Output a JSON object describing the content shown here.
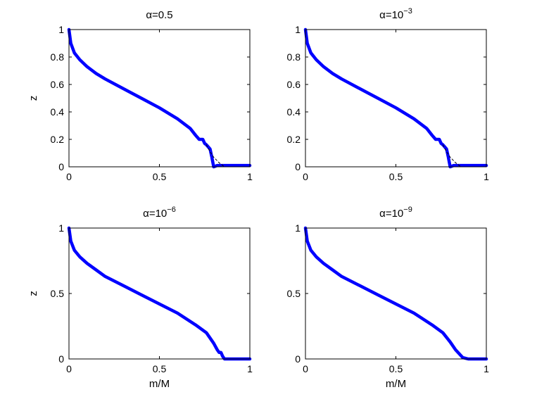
{
  "chart_data": [
    {
      "type": "line",
      "title_base": "α=",
      "title_value": "0.5",
      "title_exp": "",
      "xlabel": "",
      "ylabel": "z",
      "xlim": [
        0,
        1
      ],
      "ylim": [
        0,
        1
      ],
      "xticks": [
        0,
        0.5,
        1
      ],
      "xtick_labels": [
        "0",
        "0.5",
        "1"
      ],
      "yticks": [
        0,
        0.2,
        0.4,
        0.6,
        0.8,
        1
      ],
      "ytick_labels": [
        "0",
        "0.2",
        "0.4",
        "0.6",
        "0.8",
        "1"
      ],
      "series": [
        {
          "color": "#0000ff",
          "style": "solid",
          "x": [
            0,
            0.01,
            0.03,
            0.06,
            0.1,
            0.15,
            0.2,
            0.3,
            0.4,
            0.5,
            0.6,
            0.67,
            0.7,
            0.72,
            0.74,
            0.75,
            0.76,
            0.78,
            0.79,
            0.8,
            0.82,
            0.84,
            0.86,
            0.9,
            0.95,
            1.0
          ],
          "y": [
            1.0,
            0.9,
            0.83,
            0.78,
            0.73,
            0.68,
            0.64,
            0.57,
            0.5,
            0.43,
            0.35,
            0.28,
            0.23,
            0.2,
            0.2,
            0.17,
            0.16,
            0.13,
            0.07,
            0.0,
            0.01,
            0.01,
            0.01,
            0.01,
            0.01,
            0.01
          ]
        },
        {
          "color": "#000000",
          "style": "dashed",
          "x": [
            0.76,
            0.78,
            0.8,
            0.83,
            0.86
          ],
          "y": [
            0.16,
            0.11,
            0.07,
            0.03,
            0.0
          ]
        }
      ]
    },
    {
      "type": "line",
      "title_base": "α=",
      "title_value": "10",
      "title_exp": "−3",
      "xlabel": "",
      "ylabel": "",
      "xlim": [
        0,
        1
      ],
      "ylim": [
        0,
        1
      ],
      "xticks": [
        0,
        0.5,
        1
      ],
      "xtick_labels": [
        "0",
        "0.5",
        "1"
      ],
      "yticks": [
        0,
        0.2,
        0.4,
        0.6,
        0.8,
        1
      ],
      "ytick_labels": [
        "0",
        "0.2",
        "0.4",
        "0.6",
        "0.8",
        "1"
      ],
      "series": [
        {
          "color": "#0000ff",
          "style": "solid",
          "x": [
            0,
            0.01,
            0.03,
            0.06,
            0.1,
            0.15,
            0.2,
            0.3,
            0.4,
            0.5,
            0.6,
            0.67,
            0.7,
            0.72,
            0.74,
            0.75,
            0.76,
            0.78,
            0.79,
            0.8,
            0.82,
            0.84,
            0.86,
            0.9,
            0.95,
            1.0
          ],
          "y": [
            1.0,
            0.9,
            0.83,
            0.78,
            0.73,
            0.68,
            0.64,
            0.57,
            0.5,
            0.43,
            0.35,
            0.28,
            0.23,
            0.2,
            0.2,
            0.17,
            0.16,
            0.13,
            0.07,
            0.0,
            0.01,
            0.01,
            0.01,
            0.01,
            0.01,
            0.01
          ]
        },
        {
          "color": "#000000",
          "style": "dashed",
          "x": [
            0.76,
            0.78,
            0.8,
            0.83,
            0.86
          ],
          "y": [
            0.16,
            0.11,
            0.07,
            0.03,
            0.0
          ]
        }
      ]
    },
    {
      "type": "line",
      "title_base": "α=",
      "title_value": "10",
      "title_exp": "−6",
      "xlabel": "m/M",
      "ylabel": "z",
      "xlim": [
        0,
        1
      ],
      "ylim": [
        0,
        1
      ],
      "xticks": [
        0,
        0.5,
        1
      ],
      "xtick_labels": [
        "0",
        "0.5",
        "1"
      ],
      "yticks": [
        0,
        0.5,
        1
      ],
      "ytick_labels": [
        "0",
        "0.5",
        "1"
      ],
      "series": [
        {
          "color": "#0000ff",
          "style": "solid",
          "x": [
            0,
            0.01,
            0.03,
            0.06,
            0.1,
            0.15,
            0.2,
            0.3,
            0.4,
            0.5,
            0.6,
            0.7,
            0.76,
            0.8,
            0.82,
            0.83,
            0.84,
            0.85,
            0.86,
            0.9,
            0.95,
            1.0
          ],
          "y": [
            1.0,
            0.9,
            0.83,
            0.78,
            0.73,
            0.68,
            0.63,
            0.56,
            0.49,
            0.42,
            0.35,
            0.26,
            0.2,
            0.12,
            0.07,
            0.05,
            0.05,
            0.02,
            0.0,
            0.0,
            0.0,
            0.0
          ]
        }
      ]
    },
    {
      "type": "line",
      "title_base": "α=",
      "title_value": "10",
      "title_exp": "−9",
      "xlabel": "m/M",
      "ylabel": "",
      "xlim": [
        0,
        1
      ],
      "ylim": [
        0,
        1
      ],
      "xticks": [
        0,
        0.5,
        1
      ],
      "xtick_labels": [
        "0",
        "0.5",
        "1"
      ],
      "yticks": [
        0,
        0.5,
        1
      ],
      "ytick_labels": [
        "0",
        "0.5",
        "1"
      ],
      "series": [
        {
          "color": "#0000ff",
          "style": "solid",
          "x": [
            0,
            0.01,
            0.03,
            0.06,
            0.1,
            0.15,
            0.2,
            0.3,
            0.4,
            0.5,
            0.6,
            0.7,
            0.76,
            0.8,
            0.83,
            0.85,
            0.87,
            0.9,
            0.95,
            1.0
          ],
          "y": [
            1.0,
            0.9,
            0.83,
            0.78,
            0.73,
            0.68,
            0.63,
            0.56,
            0.49,
            0.42,
            0.35,
            0.26,
            0.2,
            0.13,
            0.07,
            0.04,
            0.01,
            0.0,
            0.0,
            0.0
          ]
        }
      ]
    }
  ]
}
